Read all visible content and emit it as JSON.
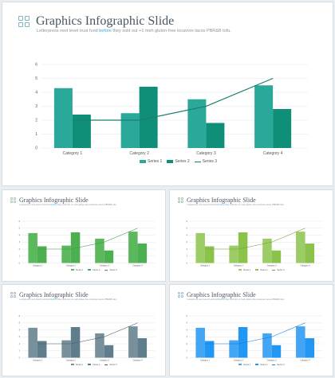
{
  "slide": {
    "title": "Graphics Infographic Slide",
    "subtitle_pre": "Letterpress next level trust fund ",
    "subtitle_hl": "before",
    "subtitle_post": " they sold out +1 meh gluten-free locavore tacos PBR&B tofu."
  },
  "chart_data": {
    "type": "bar",
    "categories": [
      "Category 1",
      "Category 2",
      "Category 3",
      "Category 4"
    ],
    "series": [
      {
        "name": "Series 1",
        "values": [
          4.3,
          2.5,
          3.5,
          4.5
        ]
      },
      {
        "name": "Series 2",
        "values": [
          2.4,
          4.4,
          1.8,
          2.8
        ]
      }
    ],
    "line_series": {
      "name": "Series 3",
      "values": [
        2,
        2,
        3,
        5
      ]
    },
    "ylim": [
      0,
      6
    ],
    "yticks": [
      "0",
      "1",
      "2",
      "3",
      "4",
      "5",
      "6"
    ],
    "grid": true,
    "legend": "bottom"
  },
  "themes": [
    {
      "id": "teal",
      "s1": "#2aa89a",
      "s2": "#0f8f78",
      "line": "#1a7f70",
      "logo": "#7fb6c7"
    },
    {
      "id": "green",
      "s1": "#5cb85c",
      "s2": "#4caf50",
      "line": "#3f9a44",
      "logo": "#a9c9b2"
    },
    {
      "id": "lime",
      "s1": "#9ccc65",
      "s2": "#8bc34a",
      "line": "#6e9e37",
      "logo": "#a9c9b2"
    },
    {
      "id": "slate",
      "s1": "#78909c",
      "s2": "#607d8b",
      "line": "#455a64",
      "logo": "#a9b8c2"
    },
    {
      "id": "blue",
      "s1": "#42a5f5",
      "s2": "#2196f3",
      "line": "#1976d2",
      "logo": "#9fc3dd"
    }
  ]
}
